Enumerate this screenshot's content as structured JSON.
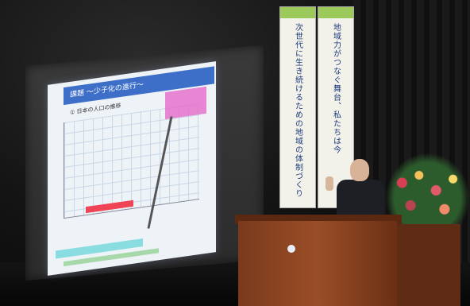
{
  "slide": {
    "title": "課題 〜少子化の進行〜",
    "subtitle": "① 日本の人口の推移"
  },
  "banners": {
    "left": "次世代に生き続けるための地域の体制づくり",
    "right": "地域力がつなぐ舞台、私たちは今"
  },
  "colors": {
    "slide_title_bg": "#3d6fc9",
    "banner_accent": "#9bc95a",
    "podium": "#9a4e27"
  }
}
